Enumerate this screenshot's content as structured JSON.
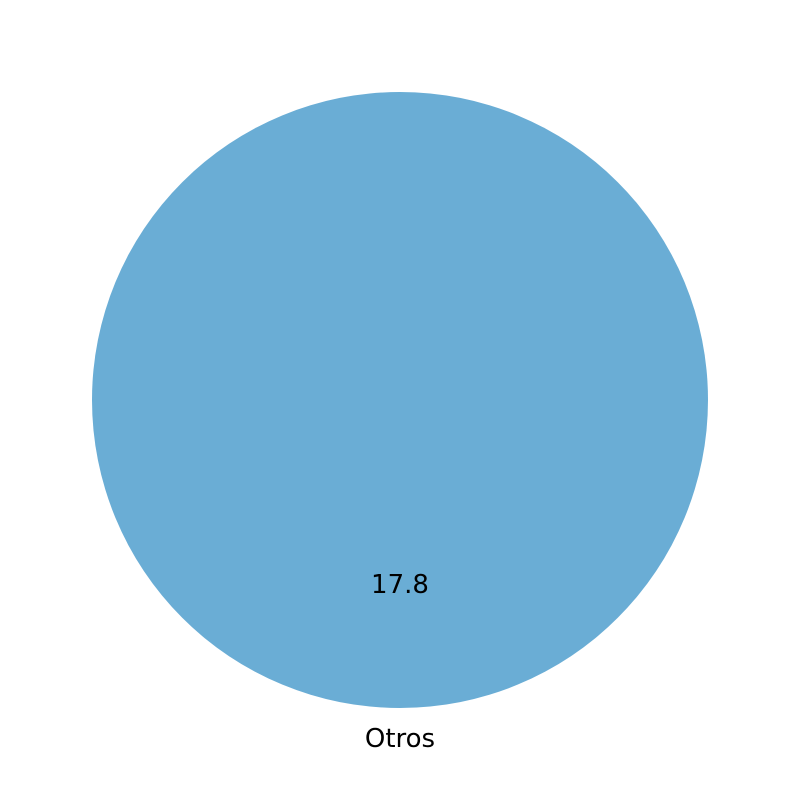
{
  "chart_data": {
    "type": "pie",
    "slices": [
      {
        "label": "Otros",
        "value": 17.8,
        "display_value": "17.8",
        "color": "#6aadd5"
      }
    ],
    "start_angle_deg": 90,
    "direction": "counterclockwise"
  }
}
